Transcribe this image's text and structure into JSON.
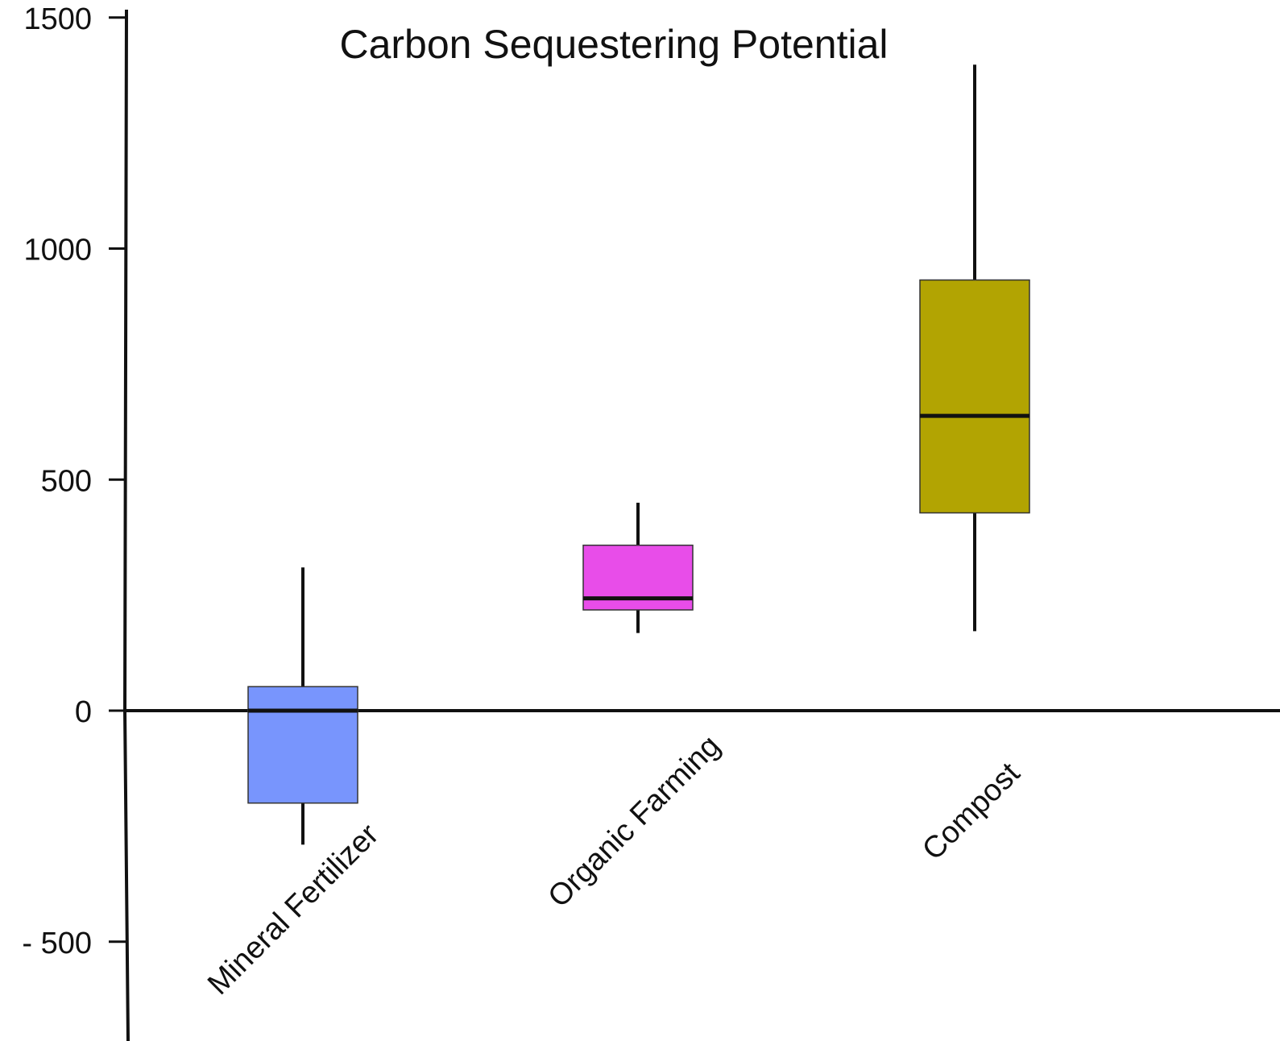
{
  "chart_data": {
    "type": "box",
    "title": "Carbon Sequestering Potential",
    "xlabel": "",
    "ylabel": "",
    "ylim": [
      -600,
      1500
    ],
    "yticks": [
      {
        "value": 1500,
        "label": "1500"
      },
      {
        "value": 1000,
        "label": "1000"
      },
      {
        "value": 500,
        "label": "500"
      },
      {
        "value": 0,
        "label": "0"
      },
      {
        "value": -500,
        "label": "- 500"
      }
    ],
    "grid": false,
    "legend": "none",
    "categories": [
      "Mineral Fertilizer",
      "Organic Farming",
      "Compost"
    ],
    "boxes": [
      {
        "category": "Mineral Fertilizer",
        "whisker_low": -290,
        "q1": -200,
        "median": 0,
        "q3": 52,
        "whisker_high": 310,
        "color": "#7895fd"
      },
      {
        "category": "Organic Farming",
        "whisker_low": 168,
        "q1": 218,
        "median": 243,
        "q3": 358,
        "whisker_high": 450,
        "color": "#e84de9"
      },
      {
        "category": "Compost",
        "whisker_low": 172,
        "q1": 428,
        "median": 638,
        "q3": 932,
        "whisker_high": 1398,
        "color": "#b2a402"
      }
    ]
  }
}
